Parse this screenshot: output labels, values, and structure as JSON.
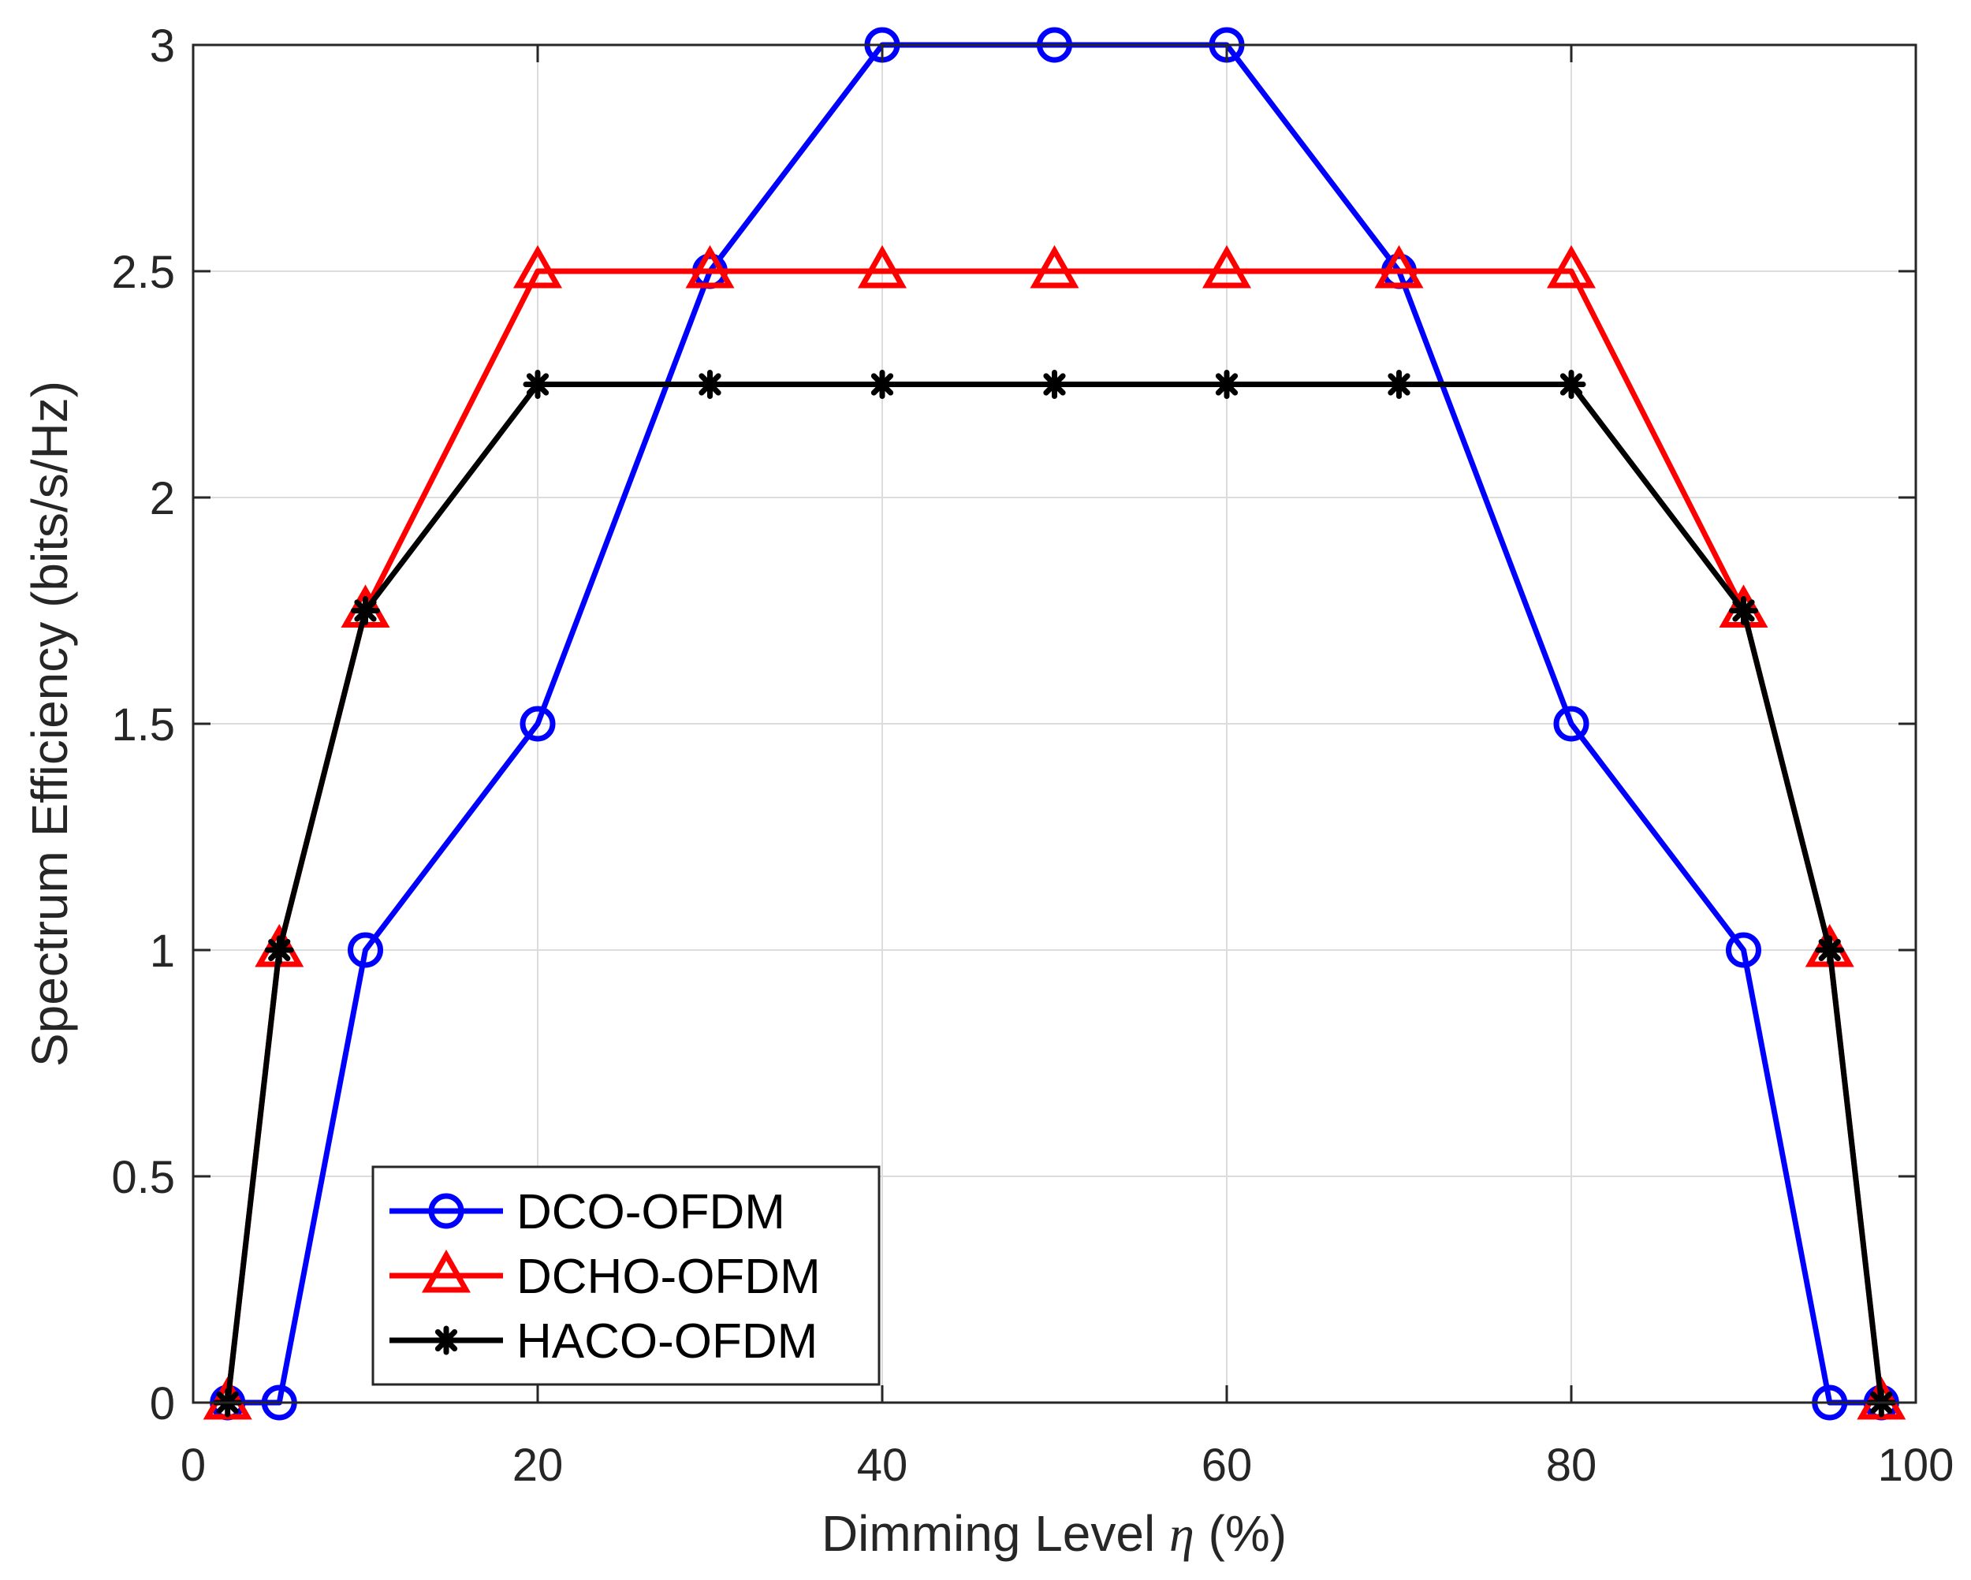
{
  "chart_data": {
    "type": "line",
    "title": "",
    "xlabel_prefix": "Dimming Level ",
    "xlabel_symbol": "η",
    "xlabel_suffix": " (%)",
    "ylabel": "Spectrum Efficiency (bits/s/Hz)",
    "xlim": [
      0,
      100
    ],
    "ylim": [
      0,
      3
    ],
    "xticks": [
      0,
      20,
      40,
      60,
      80,
      100
    ],
    "xtick_labels": [
      "0",
      "20",
      "40",
      "60",
      "80",
      "100"
    ],
    "yticks": [
      0,
      0.5,
      1,
      1.5,
      2,
      2.5,
      3
    ],
    "ytick_labels": [
      "0",
      "0.5",
      "1",
      "1.5",
      "2",
      "2.5",
      "3"
    ],
    "grid": true,
    "legend_position": "bottom-left",
    "series": [
      {
        "name": "DCO-OFDM",
        "color": "#0000ff",
        "marker": "circle",
        "x": [
          2,
          5,
          10,
          20,
          30,
          40,
          50,
          60,
          70,
          80,
          90,
          95,
          98
        ],
        "y": [
          0,
          0,
          1,
          1.5,
          2.5,
          3,
          3,
          3,
          2.5,
          1.5,
          1,
          0,
          0
        ]
      },
      {
        "name": "DCHO-OFDM",
        "color": "#ff0000",
        "marker": "triangle",
        "x": [
          2,
          5,
          10,
          20,
          30,
          40,
          50,
          60,
          70,
          80,
          90,
          95,
          98
        ],
        "y": [
          0,
          1,
          1.75,
          2.5,
          2.5,
          2.5,
          2.5,
          2.5,
          2.5,
          2.5,
          1.75,
          1,
          0
        ]
      },
      {
        "name": "HACO-OFDM",
        "color": "#000000",
        "marker": "asterisk",
        "x": [
          2,
          5,
          10,
          20,
          30,
          40,
          50,
          60,
          70,
          80,
          90,
          95,
          98
        ],
        "y": [
          0,
          1,
          1.75,
          2.25,
          2.25,
          2.25,
          2.25,
          2.25,
          2.25,
          2.25,
          1.75,
          1,
          0
        ]
      }
    ]
  }
}
